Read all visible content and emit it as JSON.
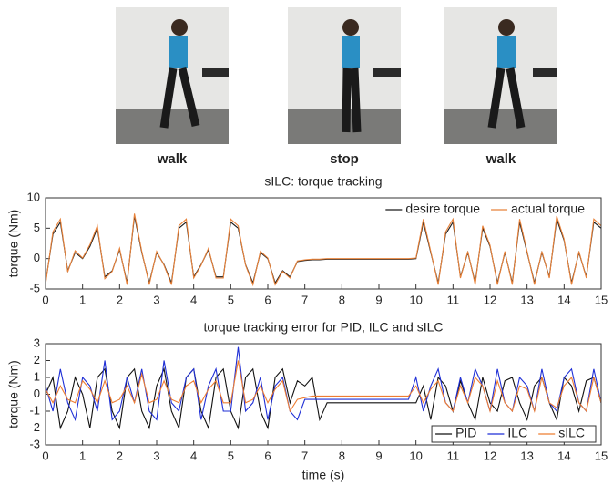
{
  "photos": [
    {
      "caption": "walk"
    },
    {
      "caption": "stop"
    },
    {
      "caption": "walk"
    }
  ],
  "chart_data": [
    {
      "type": "line",
      "title": "sILC: torque tracking",
      "ylabel": "torque (Nm)",
      "legend": "upper right",
      "x": [
        0,
        0.2,
        0.4,
        0.6,
        0.8,
        1,
        1.2,
        1.4,
        1.6,
        1.8,
        2,
        2.2,
        2.4,
        2.6,
        2.8,
        3,
        3.2,
        3.4,
        3.6,
        3.8,
        4,
        4.2,
        4.4,
        4.6,
        4.8,
        5,
        5.2,
        5.4,
        5.6,
        5.8,
        6,
        6.2,
        6.4,
        6.6,
        6.8,
        7,
        7.2,
        7.4,
        7.6,
        7.8,
        8,
        8.2,
        8.4,
        8.6,
        8.8,
        9,
        9.2,
        9.4,
        9.6,
        9.8,
        10,
        10.2,
        10.4,
        10.6,
        10.8,
        11,
        11.2,
        11.4,
        11.6,
        11.8,
        12,
        12.2,
        12.4,
        12.6,
        12.8,
        13,
        13.2,
        13.4,
        13.6,
        13.8,
        14,
        14.2,
        14.4,
        14.6,
        14.8,
        15
      ],
      "xlim": [
        0,
        15
      ],
      "xticks": [
        0,
        1,
        2,
        3,
        4,
        5,
        6,
        7,
        8,
        9,
        10,
        11,
        12,
        13,
        14,
        15
      ],
      "ylim": [
        -5,
        10
      ],
      "yticks": [
        -5,
        0,
        5,
        10
      ],
      "series": [
        {
          "name": "desire torque",
          "color": "#1a1a1a",
          "values": [
            -4,
            4,
            6,
            -2,
            1,
            0,
            2,
            5,
            -3,
            -2,
            1.5,
            -4,
            7,
            1,
            -4,
            1,
            -1,
            -4,
            5,
            6,
            -3,
            -1,
            1.5,
            -3,
            -3,
            6,
            5,
            -1,
            -4,
            1,
            0,
            -4,
            -2,
            -3,
            -0.5,
            -0.3,
            -0.2,
            -0.2,
            -0.1,
            -0.1,
            -0.1,
            -0.1,
            -0.1,
            -0.1,
            -0.1,
            -0.1,
            -0.1,
            -0.1,
            -0.1,
            -0.1,
            0,
            6,
            1,
            -4,
            4,
            6,
            -3,
            1,
            -4,
            5,
            2,
            -4,
            1,
            -4,
            6,
            1,
            -4,
            1,
            -3,
            6.5,
            3,
            -4,
            1,
            -3,
            6,
            5
          ]
        },
        {
          "name": "actual torque",
          "color": "#e8823a",
          "values": [
            -4.3,
            4.4,
            6.5,
            -2.2,
            1.3,
            0.1,
            2.3,
            5.4,
            -3.3,
            -2.1,
            1.7,
            -4.3,
            7.4,
            1.2,
            -4.3,
            1.2,
            -1.1,
            -4.3,
            5.4,
            6.5,
            -3.2,
            -1.1,
            1.7,
            -3.2,
            -3.2,
            6.5,
            5.4,
            -1.1,
            -4.3,
            1.2,
            0.1,
            -4.3,
            -2.1,
            -3.2,
            -0.4,
            -0.2,
            -0.1,
            -0.1,
            0,
            0,
            0,
            0,
            0,
            0,
            0,
            0,
            0,
            0,
            0,
            0,
            0.1,
            6.5,
            1.2,
            -4.3,
            4.4,
            6.5,
            -3.2,
            1.2,
            -4.3,
            5.4,
            2.2,
            -4.3,
            1.2,
            -4.3,
            6.5,
            1.2,
            -4.3,
            1.2,
            -3.2,
            7,
            3.2,
            -4.3,
            1.2,
            -3.2,
            6.5,
            5.4
          ]
        }
      ]
    },
    {
      "type": "line",
      "title": "torque tracking error for PID, ILC and sILC",
      "ylabel": "torque (Nm)",
      "xlabel": "time (s)",
      "legend": "lower right",
      "x": [
        0,
        0.2,
        0.4,
        0.6,
        0.8,
        1,
        1.2,
        1.4,
        1.6,
        1.8,
        2,
        2.2,
        2.4,
        2.6,
        2.8,
        3,
        3.2,
        3.4,
        3.6,
        3.8,
        4,
        4.2,
        4.4,
        4.6,
        4.8,
        5,
        5.2,
        5.4,
        5.6,
        5.8,
        6,
        6.2,
        6.4,
        6.6,
        6.8,
        7,
        7.2,
        7.4,
        7.6,
        7.8,
        8,
        8.2,
        8.4,
        8.6,
        8.8,
        9,
        9.2,
        9.4,
        9.6,
        9.8,
        10,
        10.2,
        10.4,
        10.6,
        10.8,
        11,
        11.2,
        11.4,
        11.6,
        11.8,
        12,
        12.2,
        12.4,
        12.6,
        12.8,
        13,
        13.2,
        13.4,
        13.6,
        13.8,
        14,
        14.2,
        14.4,
        14.6,
        14.8,
        15
      ],
      "xlim": [
        0,
        15
      ],
      "xticks": [
        0,
        1,
        2,
        3,
        4,
        5,
        6,
        7,
        8,
        9,
        10,
        11,
        12,
        13,
        14,
        15
      ],
      "ylim": [
        -3,
        3
      ],
      "yticks": [
        -3,
        -2,
        -1,
        0,
        1,
        2,
        3
      ],
      "series": [
        {
          "name": "PID",
          "color": "#111111",
          "values": [
            0,
            1,
            -2,
            -1,
            1,
            0,
            -2,
            1,
            1.5,
            -1,
            -2,
            1,
            1.5,
            -1,
            -2,
            0.5,
            1.5,
            -1,
            -2,
            1,
            1.5,
            -1,
            -2,
            1,
            1.5,
            -1,
            -2,
            1,
            1.5,
            -1,
            -2,
            1,
            1.5,
            -0.5,
            0.8,
            0.5,
            1,
            -1.5,
            -0.5,
            -0.5,
            -0.5,
            -0.5,
            -0.5,
            -0.5,
            -0.5,
            -0.5,
            -0.5,
            -0.5,
            -0.5,
            -0.5,
            -0.5,
            0.5,
            -1.5,
            1,
            0.5,
            -1,
            0.8,
            -0.5,
            -1.5,
            1,
            -0.5,
            -1,
            0.8,
            1,
            -0.5,
            -1.5,
            0.5,
            1,
            -0.5,
            -1.5,
            1,
            0.5,
            -1,
            0.8,
            1,
            -0.5
          ]
        },
        {
          "name": "ILC",
          "color": "#1f2fd6",
          "values": [
            0.5,
            -1,
            1.5,
            -0.5,
            -1.5,
            1,
            0.5,
            -1,
            2,
            -1.5,
            -1,
            1,
            -0.5,
            1.5,
            -1,
            -1.5,
            2,
            -0.5,
            -1,
            1,
            1.5,
            -1.5,
            0.5,
            1.5,
            -1,
            -1,
            2.8,
            -1,
            -0.5,
            1,
            -1.5,
            0.5,
            1,
            -1,
            -1.5,
            -0.3,
            -0.3,
            -0.3,
            -0.3,
            -0.3,
            -0.3,
            -0.3,
            -0.3,
            -0.3,
            -0.3,
            -0.3,
            -0.3,
            -0.3,
            -0.3,
            -0.3,
            1,
            -1,
            0.5,
            1.5,
            -0.5,
            -1,
            1,
            -0.5,
            1.5,
            0.5,
            -1,
            1.5,
            -0.5,
            -1,
            1,
            0.5,
            -1,
            1.5,
            -0.5,
            -1,
            1,
            1.5,
            -0.5,
            -1,
            1.5,
            -0.5
          ]
        },
        {
          "name": "sILC",
          "color": "#ee7d32",
          "values": [
            0.3,
            -0.5,
            0.5,
            -0.3,
            -0.5,
            0.8,
            0.3,
            -0.5,
            0.8,
            -0.5,
            -0.3,
            0.5,
            -0.5,
            1.2,
            -0.5,
            -0.3,
            0.8,
            -0.3,
            -0.5,
            0.5,
            0.8,
            -0.5,
            0.3,
            0.8,
            -0.5,
            -0.5,
            2,
            -0.5,
            -0.3,
            0.5,
            -0.5,
            0.3,
            0.8,
            -1,
            -0.3,
            -0.2,
            -0.1,
            -0.1,
            -0.1,
            -0.1,
            -0.1,
            -0.1,
            -0.1,
            -0.1,
            -0.1,
            -0.1,
            -0.1,
            -0.1,
            -0.1,
            -0.1,
            0.5,
            -0.5,
            0.3,
            0.8,
            -0.5,
            -1,
            0.5,
            -0.5,
            1,
            0.5,
            -1,
            0.8,
            -0.5,
            -1,
            0.5,
            0.3,
            -1,
            1,
            -0.5,
            -0.8,
            0.5,
            1,
            -0.5,
            -1,
            1,
            -0.5
          ]
        }
      ]
    }
  ]
}
